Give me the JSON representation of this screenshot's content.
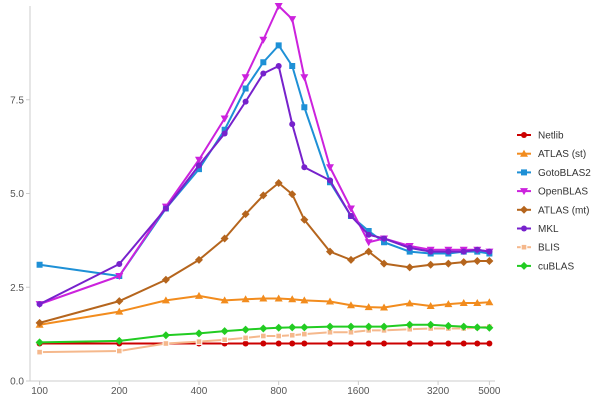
{
  "chart_data": {
    "type": "line",
    "xscale": "log",
    "xticks": [
      100,
      200,
      400,
      800,
      1600,
      3200,
      5000
    ],
    "xtick_labels": [
      "100",
      "200",
      "400",
      "800",
      "1600",
      "3200",
      "5000"
    ],
    "yticks": [
      0,
      2.5,
      5,
      7.5
    ],
    "ytick_labels": [
      "0.0",
      "2.5",
      "5.0",
      "7.5"
    ],
    "xlim": [
      92,
      5250
    ],
    "ylim": [
      0,
      10
    ],
    "grid": false,
    "legend": "right",
    "x": [
      100,
      200,
      300,
      400,
      500,
      600,
      700,
      800,
      900,
      1000,
      1250,
      1500,
      1750,
      2000,
      2500,
      3000,
      3500,
      4000,
      4500,
      5000
    ],
    "series": [
      {
        "name": "Netlib",
        "color": "#cc0000",
        "marker": "circle",
        "values": [
          1.0,
          1.0,
          1.0,
          1.0,
          1.0,
          1.0,
          1.0,
          1.0,
          1.0,
          1.0,
          1.0,
          1.0,
          1.0,
          1.0,
          1.0,
          1.0,
          1.0,
          1.0,
          1.0,
          1.0
        ]
      },
      {
        "name": "ATLAS (st)",
        "color": "#f28c1e",
        "marker": "triangle-up",
        "values": [
          1.5,
          1.85,
          2.15,
          2.27,
          2.15,
          2.18,
          2.2,
          2.2,
          2.18,
          2.15,
          2.12,
          2.02,
          1.97,
          1.96,
          2.07,
          2.0,
          2.05,
          2.08,
          2.08,
          2.1
        ]
      },
      {
        "name": "GotoBLAS2",
        "color": "#1e90d6",
        "marker": "square",
        "values": [
          3.1,
          2.8,
          4.6,
          5.65,
          6.7,
          7.8,
          8.5,
          8.95,
          8.4,
          7.3,
          5.3,
          4.4,
          4.0,
          3.7,
          3.45,
          3.4,
          3.4,
          3.45,
          3.45,
          3.4
        ]
      },
      {
        "name": "OpenBLAS",
        "color": "#cc22dd",
        "marker": "triangle-down",
        "values": [
          2.05,
          2.8,
          4.65,
          5.9,
          7.0,
          8.1,
          9.1,
          10.0,
          9.65,
          8.1,
          5.7,
          4.6,
          3.7,
          3.8,
          3.6,
          3.5,
          3.5,
          3.5,
          3.5,
          3.45
        ]
      },
      {
        "name": "ATLAS (mt)",
        "color": "#b5651d",
        "marker": "diamond",
        "values": [
          1.55,
          2.13,
          2.7,
          3.23,
          3.8,
          4.45,
          4.95,
          5.28,
          4.98,
          4.3,
          3.45,
          3.23,
          3.45,
          3.13,
          3.03,
          3.1,
          3.13,
          3.17,
          3.2,
          3.2
        ]
      },
      {
        "name": "MKL",
        "color": "#7722cc",
        "marker": "circle",
        "values": [
          2.05,
          3.12,
          4.6,
          5.75,
          6.6,
          7.45,
          8.2,
          8.4,
          6.85,
          5.7,
          5.35,
          4.4,
          3.9,
          3.8,
          3.55,
          3.45,
          3.45,
          3.45,
          3.5,
          3.45
        ]
      },
      {
        "name": "BLIS",
        "color": "#f5b88c",
        "marker": "square-open",
        "values": [
          0.77,
          0.8,
          1.0,
          1.05,
          1.1,
          1.15,
          1.2,
          1.2,
          1.22,
          1.25,
          1.3,
          1.3,
          1.35,
          1.35,
          1.38,
          1.4,
          1.4,
          1.4,
          1.42,
          1.45
        ]
      },
      {
        "name": "cuBLAS",
        "color": "#22cc22",
        "marker": "diamond",
        "values": [
          1.03,
          1.07,
          1.22,
          1.27,
          1.33,
          1.37,
          1.4,
          1.42,
          1.43,
          1.43,
          1.45,
          1.45,
          1.45,
          1.45,
          1.5,
          1.5,
          1.47,
          1.45,
          1.43,
          1.42
        ]
      }
    ]
  }
}
